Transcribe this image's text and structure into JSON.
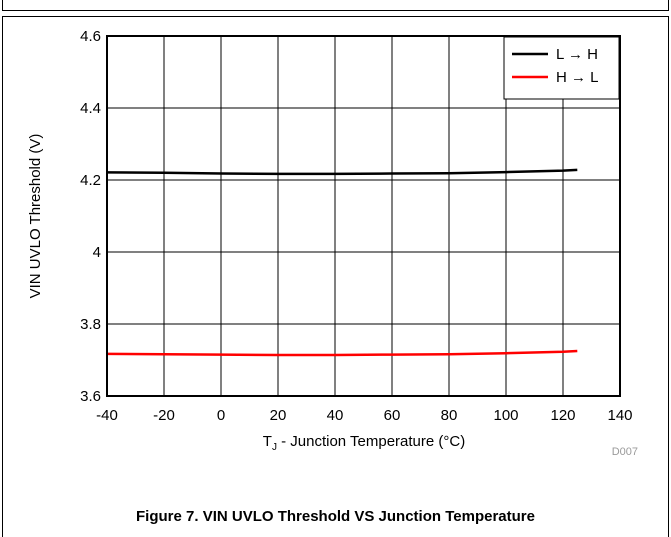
{
  "chart_data": {
    "type": "line",
    "title": "",
    "xlabel": "T_J - Junction Temperature (°C)",
    "xlabel_main": "T",
    "xlabel_sub": "J",
    "xlabel_rest": " - Junction Temperature (°C)",
    "ylabel": "VIN UVLO Threshold (V)",
    "xlim": [
      -40,
      140
    ],
    "ylim": [
      3.6,
      4.6
    ],
    "xticks": [
      -40,
      -20,
      0,
      20,
      40,
      60,
      80,
      100,
      120,
      140
    ],
    "yticks": [
      3.6,
      3.8,
      4,
      4.2,
      4.4,
      4.6
    ],
    "xtick_labels": [
      "-40",
      "-20",
      "0",
      "20",
      "40",
      "60",
      "80",
      "100",
      "120",
      "140"
    ],
    "ytick_labels": [
      "3.6",
      "3.8",
      "4",
      "4.2",
      "4.4",
      "4.6"
    ],
    "grid": true,
    "legend_position": "top-right",
    "series": [
      {
        "name": "L → H",
        "color": "#000000",
        "x": [
          -40,
          -20,
          0,
          20,
          40,
          60,
          80,
          100,
          120,
          125
        ],
        "y": [
          4.221,
          4.22,
          4.218,
          4.217,
          4.217,
          4.218,
          4.219,
          4.222,
          4.226,
          4.228
        ]
      },
      {
        "name": "H → L",
        "color": "#ff0000",
        "x": [
          -40,
          -20,
          0,
          20,
          40,
          60,
          80,
          100,
          120,
          125
        ],
        "y": [
          3.717,
          3.716,
          3.715,
          3.714,
          3.714,
          3.715,
          3.716,
          3.719,
          3.723,
          3.725
        ]
      }
    ]
  },
  "figure_code": "D007",
  "caption": "Figure 7. VIN UVLO Threshold VS Junction Temperature"
}
